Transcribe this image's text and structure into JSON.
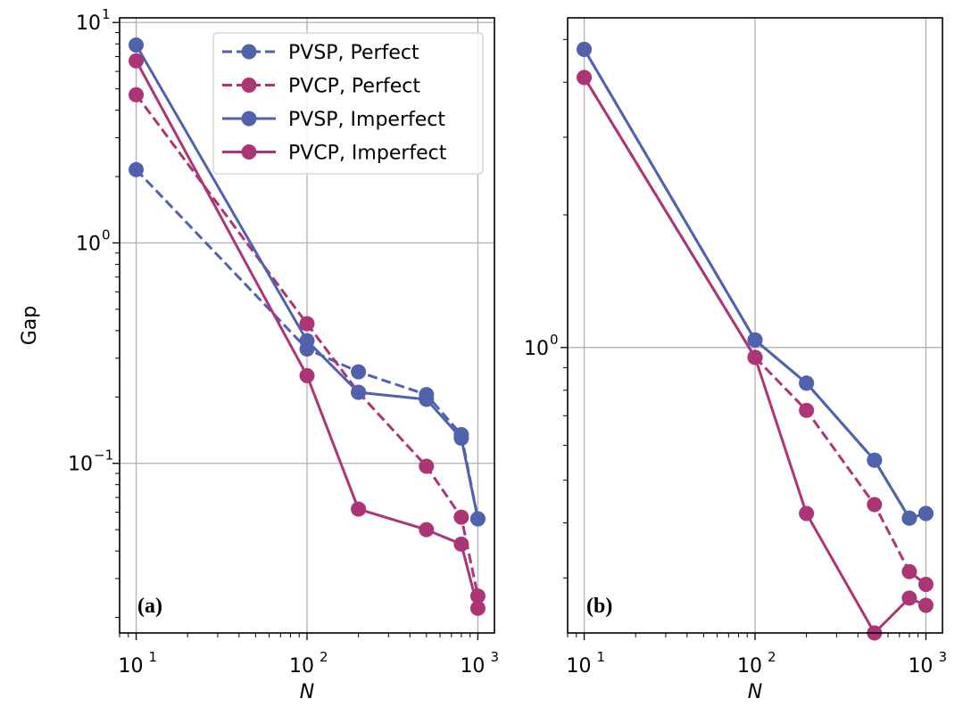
{
  "chart_data": [
    {
      "type": "line",
      "panel_label": "(a)",
      "xlabel": "N",
      "ylabel": "Gap",
      "xscale": "log",
      "yscale": "log",
      "xlim": [
        8,
        1250
      ],
      "ylim": [
        0.017,
        10.5
      ],
      "grid": true,
      "legend_position": "top-right",
      "x_ticks": [
        {
          "value": 10,
          "base": "10",
          "exp": "1"
        },
        {
          "value": 100,
          "base": "10",
          "exp": "2"
        },
        {
          "value": 1000,
          "base": "10",
          "exp": "3"
        }
      ],
      "y_ticks": [
        {
          "value": 10,
          "base": "10",
          "exp": "1"
        },
        {
          "value": 1,
          "base": "10",
          "exp": "0"
        },
        {
          "value": 0.1,
          "base": "10",
          "exp": "−1"
        }
      ],
      "series": [
        {
          "name": "PVSP, Perfect",
          "color": "#5162ad",
          "dashed": true,
          "x": [
            10,
            100,
            200,
            500,
            800,
            1000
          ],
          "y": [
            2.15,
            0.33,
            0.26,
            0.205,
            0.135,
            0.056
          ]
        },
        {
          "name": "PVCP, Perfect",
          "color": "#ac3575",
          "dashed": true,
          "x": [
            10,
            100,
            200,
            500,
            800,
            1000
          ],
          "y": [
            4.7,
            0.43,
            0.21,
            0.097,
            0.057,
            0.025
          ]
        },
        {
          "name": "PVSP, Imperfect",
          "color": "#5162ad",
          "dashed": false,
          "x": [
            10,
            100,
            200,
            500,
            800,
            1000
          ],
          "y": [
            7.9,
            0.36,
            0.21,
            0.195,
            0.13,
            0.056
          ]
        },
        {
          "name": "PVCP, Imperfect",
          "color": "#ac3575",
          "dashed": false,
          "x": [
            10,
            100,
            200,
            500,
            800,
            1000
          ],
          "y": [
            6.7,
            0.25,
            0.062,
            0.05,
            0.043,
            0.022
          ]
        }
      ]
    },
    {
      "type": "line",
      "panel_label": "(b)",
      "xlabel": "N",
      "ylabel": "",
      "xscale": "log",
      "yscale": "log",
      "xlim": [
        8,
        1250
      ],
      "ylim": [
        0.225,
        5.6
      ],
      "grid": true,
      "x_ticks": [
        {
          "value": 10,
          "base": "10",
          "exp": "1"
        },
        {
          "value": 100,
          "base": "10",
          "exp": "2"
        },
        {
          "value": 1000,
          "base": "10",
          "exp": "3"
        }
      ],
      "y_ticks": [
        {
          "value": 1,
          "base": "10",
          "exp": "0"
        }
      ],
      "series": [
        {
          "name": "PVSP, Perfect",
          "color": "#5162ad",
          "dashed": true,
          "x": [
            10,
            100,
            200,
            500,
            800,
            1000
          ],
          "y": [
            4.75,
            1.04,
            0.83,
            0.555,
            0.41,
            0.42
          ]
        },
        {
          "name": "PVCP, Perfect",
          "color": "#ac3575",
          "dashed": true,
          "x": [
            10,
            100,
            200,
            500,
            800,
            1000
          ],
          "y": [
            4.1,
            0.95,
            0.72,
            0.44,
            0.31,
            0.29
          ]
        },
        {
          "name": "PVSP, Imperfect",
          "color": "#5162ad",
          "dashed": false,
          "x": [
            10,
            100,
            200,
            500,
            800,
            1000
          ],
          "y": [
            4.75,
            1.04,
            0.83,
            0.555,
            0.41,
            0.42
          ]
        },
        {
          "name": "PVCP, Imperfect",
          "color": "#ac3575",
          "dashed": false,
          "x": [
            10,
            100,
            200,
            500,
            800,
            1000
          ],
          "y": [
            4.1,
            0.95,
            0.42,
            0.225,
            0.27,
            0.26
          ]
        }
      ]
    }
  ]
}
